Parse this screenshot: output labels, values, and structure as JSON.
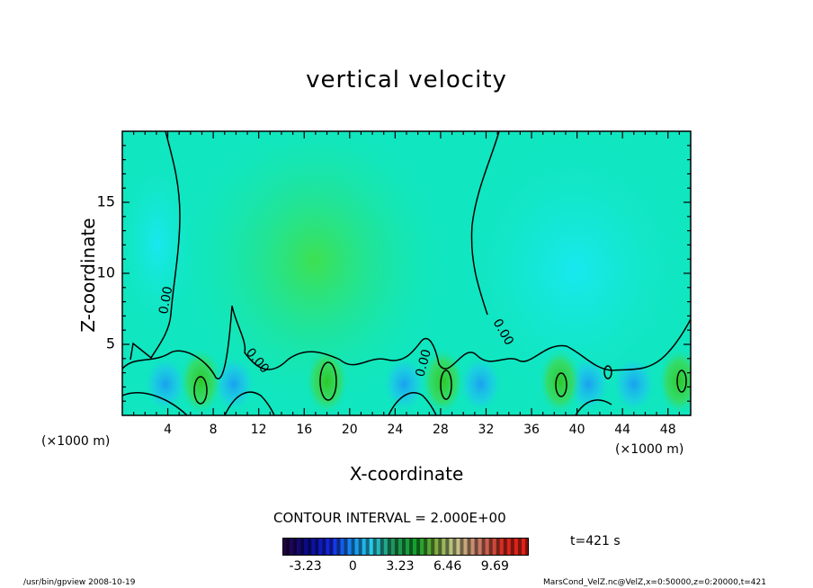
{
  "chart_data": {
    "type": "heatmap",
    "title": "vertical velocity",
    "xlabel": "X-coordinate",
    "ylabel": "Z-coordinate",
    "x_unit": "(×1000 m)",
    "x_ticks": [
      "4",
      "8",
      "12",
      "16",
      "20",
      "24",
      "28",
      "32",
      "36",
      "40",
      "44",
      "48"
    ],
    "y_ticks": [
      "5",
      "10",
      "15"
    ],
    "xlim": [
      0,
      50
    ],
    "ylim": [
      0,
      20
    ],
    "contour_label": "0.00",
    "contour_interval_text": "CONTOUR INTERVAL = 2.000E+00",
    "colorbar_ticks": [
      "-3.23",
      "0",
      "3.23",
      "6.46",
      "9.69"
    ],
    "colorbar_range": [
      -4.8,
      12.0
    ],
    "updraft_cells_x": [
      6.9,
      18.0,
      28.2,
      38.5,
      49.0
    ],
    "downdraft_cells_x": [
      3.8,
      9.8,
      24.8,
      31.5,
      41.0,
      45.0
    ]
  },
  "time_label": "t=421 s",
  "footer": {
    "left": "/usr/bin/gpview   2008-10-19",
    "right": "MarsCond_VelZ.nc@VelZ,x=0:50000,z=0:20000,t=421"
  },
  "colors": {
    "background_field": "#10e6c0",
    "updraft": "#33d020",
    "downdraft": "#20a8f0",
    "contour": "#000000"
  }
}
